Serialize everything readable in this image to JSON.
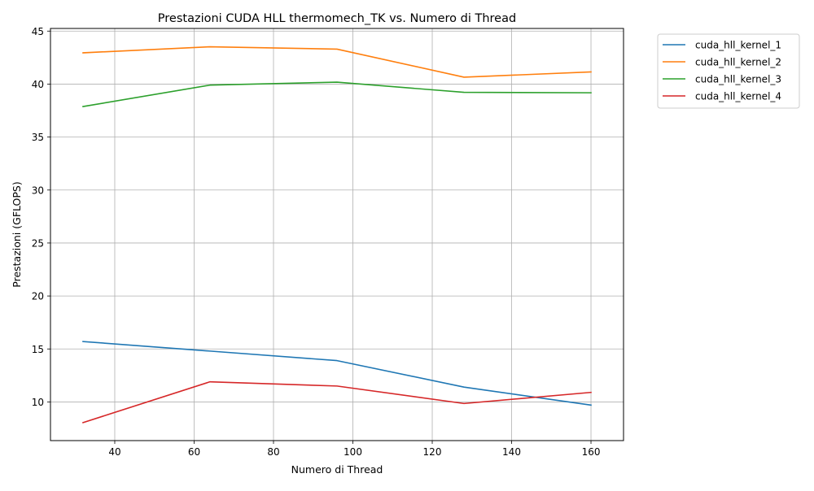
{
  "chart_data": {
    "type": "line",
    "title": "Prestazioni CUDA HLL thermomech_TK vs. Numero di Thread",
    "xlabel": "Numero di Thread",
    "ylabel": "Prestazioni (GFLOPS)",
    "x": [
      32,
      64,
      96,
      128,
      160
    ],
    "xlim": [
      23.8,
      168.2
    ],
    "ylim": [
      6.35,
      45.25
    ],
    "xticks": [
      40,
      60,
      80,
      100,
      120,
      140,
      160
    ],
    "yticks": [
      10,
      15,
      20,
      25,
      30,
      35,
      40,
      45
    ],
    "grid": true,
    "legend_position": "outside-right",
    "series": [
      {
        "name": "cuda_hll_kernel_1",
        "color": "#1f77b4",
        "values": [
          15.7,
          14.8,
          13.9,
          11.4,
          9.7
        ]
      },
      {
        "name": "cuda_hll_kernel_2",
        "color": "#ff7f0e",
        "values": [
          42.95,
          43.52,
          43.3,
          40.65,
          41.15
        ]
      },
      {
        "name": "cuda_hll_kernel_3",
        "color": "#2ca02c",
        "values": [
          37.88,
          39.9,
          40.18,
          39.22,
          39.18
        ]
      },
      {
        "name": "cuda_hll_kernel_4",
        "color": "#d62728",
        "values": [
          8.05,
          11.9,
          11.5,
          9.85,
          10.9
        ]
      }
    ]
  }
}
